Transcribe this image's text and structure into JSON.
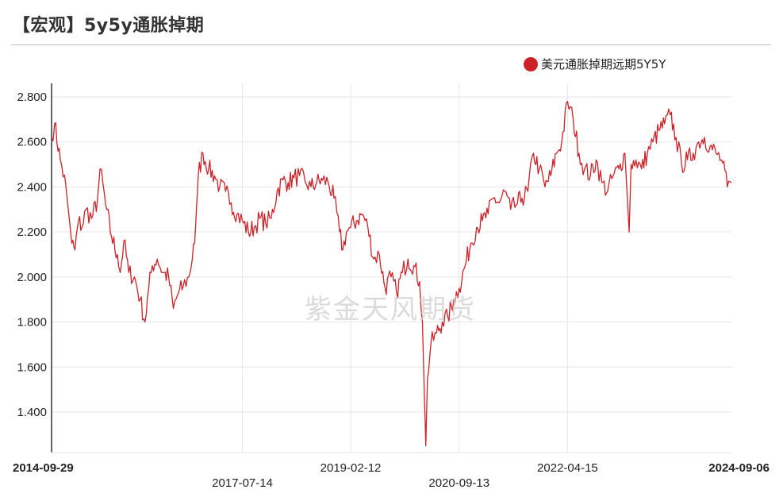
{
  "header": {
    "title": "【宏观】5y5y通胀掉期"
  },
  "watermark": "紫金天风期货",
  "colors": {
    "series": "#cc2229",
    "grid": "#e6e6e6",
    "axis": "#333333"
  },
  "chart_data": {
    "type": "line",
    "title": "【宏观】5y5y通胀掉期",
    "xlabel": "",
    "ylabel": "",
    "ylim": [
      1.22,
      2.86
    ],
    "xlim": [
      "2014-09-29",
      "2024-09-06"
    ],
    "yticks": [
      "1.400",
      "1.600",
      "1.800",
      "2.000",
      "2.200",
      "2.400",
      "2.600",
      "2.800"
    ],
    "xticks": [
      {
        "date": "2014-09-29",
        "label": "2014-09-29",
        "bold": true,
        "row": 1
      },
      {
        "date": "2017-07-14",
        "label": "2017-07-14",
        "bold": false,
        "row": 2
      },
      {
        "date": "2019-02-12",
        "label": "2019-02-12",
        "bold": false,
        "row": 1
      },
      {
        "date": "2020-09-13",
        "label": "2020-09-13",
        "bold": false,
        "row": 2
      },
      {
        "date": "2022-04-15",
        "label": "2022-04-15",
        "bold": false,
        "row": 1
      },
      {
        "date": "2024-09-06",
        "label": "2024-09-06",
        "bold": true,
        "row": 1
      }
    ],
    "grid": true,
    "legend": "top-right",
    "series": [
      {
        "name": "美元通胀掉期远期5Y5Y",
        "points": [
          [
            "2014-09-29",
            2.62
          ],
          [
            "2014-10-15",
            2.68
          ],
          [
            "2014-11-15",
            2.52
          ],
          [
            "2014-12-15",
            2.4
          ],
          [
            "2015-01-15",
            2.15
          ],
          [
            "2015-02-01",
            2.12
          ],
          [
            "2015-02-20",
            2.25
          ],
          [
            "2015-03-10",
            2.22
          ],
          [
            "2015-04-01",
            2.3
          ],
          [
            "2015-05-01",
            2.26
          ],
          [
            "2015-06-01",
            2.34
          ],
          [
            "2015-06-15",
            2.48
          ],
          [
            "2015-07-15",
            2.32
          ],
          [
            "2015-08-15",
            2.18
          ],
          [
            "2015-09-15",
            2.1
          ],
          [
            "2015-10-01",
            2.02
          ],
          [
            "2015-10-20",
            2.16
          ],
          [
            "2015-11-15",
            2.02
          ],
          [
            "2015-12-15",
            2.0
          ],
          [
            "2016-01-15",
            1.9
          ],
          [
            "2016-02-10",
            1.8
          ],
          [
            "2016-03-01",
            1.95
          ],
          [
            "2016-03-20",
            2.05
          ],
          [
            "2016-04-15",
            2.08
          ],
          [
            "2016-05-15",
            2.02
          ],
          [
            "2016-06-15",
            2.0
          ],
          [
            "2016-07-10",
            1.86
          ],
          [
            "2016-08-01",
            1.92
          ],
          [
            "2016-09-01",
            1.96
          ],
          [
            "2016-10-01",
            2.0
          ],
          [
            "2016-11-01",
            2.15
          ],
          [
            "2016-11-20",
            2.45
          ],
          [
            "2016-12-15",
            2.55
          ],
          [
            "2017-01-15",
            2.48
          ],
          [
            "2017-02-15",
            2.45
          ],
          [
            "2017-03-15",
            2.4
          ],
          [
            "2017-04-15",
            2.38
          ],
          [
            "2017-05-15",
            2.33
          ],
          [
            "2017-06-15",
            2.28
          ],
          [
            "2017-07-14",
            2.25
          ],
          [
            "2017-08-15",
            2.2
          ],
          [
            "2017-09-15",
            2.22
          ],
          [
            "2017-10-15",
            2.26
          ],
          [
            "2017-11-15",
            2.24
          ],
          [
            "2017-12-15",
            2.26
          ],
          [
            "2018-01-15",
            2.38
          ],
          [
            "2018-02-15",
            2.43
          ],
          [
            "2018-03-15",
            2.42
          ],
          [
            "2018-04-15",
            2.44
          ],
          [
            "2018-05-15",
            2.45
          ],
          [
            "2018-06-15",
            2.42
          ],
          [
            "2018-07-15",
            2.4
          ],
          [
            "2018-08-15",
            2.42
          ],
          [
            "2018-09-15",
            2.43
          ],
          [
            "2018-10-15",
            2.42
          ],
          [
            "2018-11-15",
            2.35
          ],
          [
            "2018-12-15",
            2.2
          ],
          [
            "2019-01-01",
            2.12
          ],
          [
            "2019-01-20",
            2.2
          ],
          [
            "2019-02-12",
            2.22
          ],
          [
            "2019-03-15",
            2.25
          ],
          [
            "2019-04-15",
            2.28
          ],
          [
            "2019-05-15",
            2.22
          ],
          [
            "2019-06-15",
            2.08
          ],
          [
            "2019-07-15",
            2.1
          ],
          [
            "2019-08-15",
            1.95
          ],
          [
            "2019-09-15",
            2.0
          ],
          [
            "2019-10-15",
            1.93
          ],
          [
            "2019-11-15",
            2.02
          ],
          [
            "2019-12-15",
            2.08
          ],
          [
            "2020-01-15",
            2.05
          ],
          [
            "2020-02-15",
            1.98
          ],
          [
            "2020-03-01",
            1.8
          ],
          [
            "2020-03-12",
            1.45
          ],
          [
            "2020-03-19",
            1.25
          ],
          [
            "2020-03-28",
            1.55
          ],
          [
            "2020-04-15",
            1.7
          ],
          [
            "2020-05-15",
            1.75
          ],
          [
            "2020-06-15",
            1.8
          ],
          [
            "2020-07-15",
            1.82
          ],
          [
            "2020-08-15",
            1.9
          ],
          [
            "2020-09-13",
            1.95
          ],
          [
            "2020-10-15",
            2.05
          ],
          [
            "2020-11-15",
            2.15
          ],
          [
            "2020-12-15",
            2.22
          ],
          [
            "2021-01-15",
            2.25
          ],
          [
            "2021-02-15",
            2.28
          ],
          [
            "2021-03-15",
            2.35
          ],
          [
            "2021-04-15",
            2.33
          ],
          [
            "2021-05-15",
            2.38
          ],
          [
            "2021-06-15",
            2.3
          ],
          [
            "2021-07-15",
            2.32
          ],
          [
            "2021-08-15",
            2.35
          ],
          [
            "2021-09-15",
            2.38
          ],
          [
            "2021-10-15",
            2.55
          ],
          [
            "2021-11-15",
            2.48
          ],
          [
            "2021-12-15",
            2.4
          ],
          [
            "2022-01-15",
            2.45
          ],
          [
            "2022-02-15",
            2.55
          ],
          [
            "2022-03-15",
            2.6
          ],
          [
            "2022-04-15",
            2.78
          ],
          [
            "2022-05-15",
            2.7
          ],
          [
            "2022-06-15",
            2.55
          ],
          [
            "2022-07-15",
            2.48
          ],
          [
            "2022-08-15",
            2.45
          ],
          [
            "2022-09-15",
            2.52
          ],
          [
            "2022-10-15",
            2.42
          ],
          [
            "2022-11-15",
            2.38
          ],
          [
            "2022-12-15",
            2.45
          ],
          [
            "2023-01-15",
            2.48
          ],
          [
            "2023-02-15",
            2.55
          ],
          [
            "2023-03-10",
            2.2
          ],
          [
            "2023-03-20",
            2.5
          ],
          [
            "2023-04-15",
            2.52
          ],
          [
            "2023-05-15",
            2.48
          ],
          [
            "2023-06-15",
            2.55
          ],
          [
            "2023-07-15",
            2.6
          ],
          [
            "2023-08-15",
            2.65
          ],
          [
            "2023-09-15",
            2.68
          ],
          [
            "2023-10-15",
            2.72
          ],
          [
            "2023-11-15",
            2.62
          ],
          [
            "2023-12-15",
            2.5
          ],
          [
            "2024-01-15",
            2.52
          ],
          [
            "2024-02-15",
            2.55
          ],
          [
            "2024-03-15",
            2.6
          ],
          [
            "2024-04-15",
            2.62
          ],
          [
            "2024-05-15",
            2.58
          ],
          [
            "2024-06-15",
            2.55
          ],
          [
            "2024-07-15",
            2.52
          ],
          [
            "2024-08-15",
            2.4
          ],
          [
            "2024-09-06",
            2.42
          ]
        ]
      }
    ]
  }
}
